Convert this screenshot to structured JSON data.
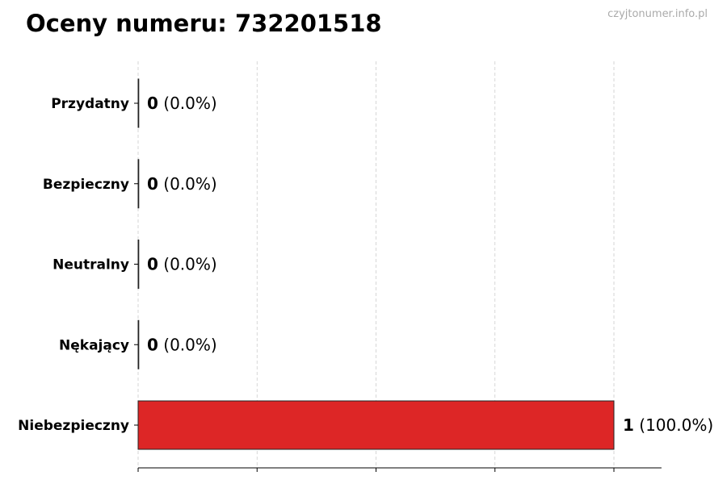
{
  "title": "Oceny numeru: 732201518",
  "watermark": "czyjtonumer.info.pl",
  "chart_data": {
    "type": "bar",
    "orientation": "horizontal",
    "title": "Oceny numeru: 732201518",
    "categories": [
      "Przydatny",
      "Bezpieczny",
      "Neutralny",
      "Nękający",
      "Niebezpieczny"
    ],
    "values": [
      0,
      0,
      0,
      0,
      1
    ],
    "labels": [
      "(0.0%)",
      "(0.0%)",
      "(0.0%)",
      "(0.0%)",
      "(100.0%)"
    ],
    "colors": [
      "#2ca02c",
      "#2ca02c",
      "#888888",
      "#dd2626",
      "#dd2626"
    ],
    "xlim": [
      0,
      1.1
    ],
    "xticks": [
      0,
      0.25,
      0.5,
      0.75,
      1.0
    ],
    "xtick_labels_shown": false,
    "grid": "x, dashed",
    "xlabel": "",
    "ylabel": ""
  }
}
